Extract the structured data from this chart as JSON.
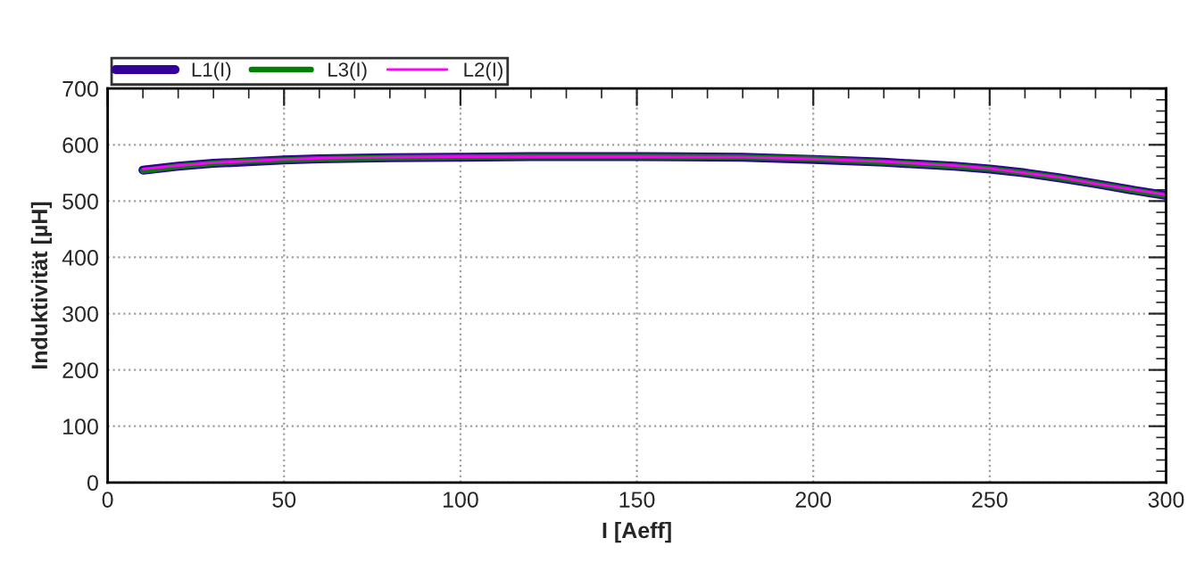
{
  "chart_data": {
    "type": "line",
    "xlabel": "I [Aeff]",
    "ylabel": "Induktivität [µH]",
    "x": [
      10,
      20,
      30,
      40,
      50,
      60,
      80,
      100,
      120,
      150,
      180,
      200,
      220,
      240,
      250,
      260,
      270,
      280,
      290,
      300
    ],
    "series": [
      {
        "name": "L1(I)",
        "color": "#330099",
        "values": [
          555,
          562,
          567,
          570,
          573,
          575,
          577,
          578,
          579,
          579,
          578,
          574,
          569,
          562,
          557,
          550,
          541,
          531,
          520,
          510
        ]
      },
      {
        "name": "L3(I)",
        "color": "#008000",
        "values": [
          554,
          562,
          567,
          571,
          573,
          575,
          577,
          578,
          579,
          579,
          578,
          575,
          569,
          562,
          557,
          550,
          541,
          531,
          520,
          510
        ]
      },
      {
        "name": "L2(I)",
        "color": "#ff00ff",
        "values": [
          557,
          563,
          568,
          571,
          574,
          576,
          578,
          579,
          579,
          579,
          578,
          575,
          570,
          563,
          558,
          550,
          542,
          531,
          521,
          511
        ]
      }
    ],
    "xlim": [
      0,
      300
    ],
    "xticks": [
      0,
      50,
      100,
      150,
      200,
      250,
      300
    ],
    "ylim": [
      0,
      700
    ],
    "yticks": [
      0,
      100,
      200,
      300,
      400,
      500,
      600,
      700
    ],
    "grid": true,
    "legend": "top left",
    "marker": "none",
    "line_style": "solid"
  }
}
